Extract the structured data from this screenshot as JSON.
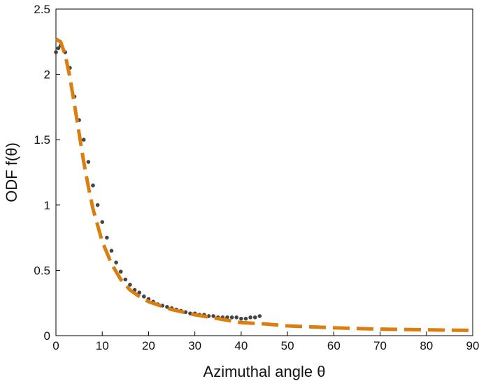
{
  "chart_data": {
    "type": "scatter",
    "x_label": "Azimuthal angle θ",
    "y_label": "ODF f(θ)",
    "xlim": [
      0,
      90
    ],
    "ylim": [
      0,
      2.5
    ],
    "xticks": [
      0,
      10,
      20,
      30,
      40,
      50,
      60,
      70,
      80,
      90
    ],
    "yticks": [
      0,
      0.5,
      1,
      1.5,
      2,
      2.5
    ],
    "series": [
      {
        "type": "scatter",
        "color": "#454545",
        "x": [
          0,
          0.5,
          1,
          2,
          3,
          4,
          5,
          6,
          7,
          8,
          9,
          10,
          11,
          12,
          13,
          14,
          15,
          16,
          17,
          18,
          19,
          20,
          21,
          22,
          23,
          24,
          25,
          26,
          27,
          28,
          29,
          30,
          31,
          32,
          33,
          34,
          35,
          36,
          37,
          38,
          39,
          40,
          41,
          42,
          43,
          44
        ],
        "values": [
          2.17,
          2.2,
          2.22,
          2.17,
          2.05,
          1.83,
          1.65,
          1.5,
          1.33,
          1.15,
          1.0,
          0.87,
          0.75,
          0.65,
          0.56,
          0.49,
          0.43,
          0.39,
          0.35,
          0.33,
          0.3,
          0.28,
          0.26,
          0.24,
          0.23,
          0.22,
          0.21,
          0.2,
          0.19,
          0.18,
          0.17,
          0.17,
          0.16,
          0.16,
          0.15,
          0.15,
          0.14,
          0.14,
          0.14,
          0.14,
          0.14,
          0.13,
          0.13,
          0.14,
          0.14,
          0.15
        ]
      },
      {
        "type": "line",
        "color": "#d97e0f",
        "dashed": true,
        "x": [
          0,
          1,
          2,
          3,
          4,
          5,
          6,
          7,
          8,
          10,
          12,
          14,
          16,
          18,
          20,
          25,
          30,
          35,
          40,
          45,
          50,
          60,
          70,
          80,
          90
        ],
        "values": [
          2.27,
          2.25,
          2.15,
          1.98,
          1.77,
          1.55,
          1.33,
          1.14,
          0.97,
          0.72,
          0.55,
          0.43,
          0.35,
          0.3,
          0.26,
          0.2,
          0.16,
          0.13,
          0.1,
          0.09,
          0.075,
          0.06,
          0.05,
          0.045,
          0.04
        ]
      }
    ]
  }
}
